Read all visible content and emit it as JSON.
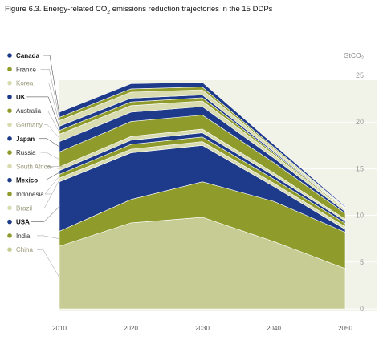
{
  "figure": {
    "title_prefix": "Figure 6.3. Energy-related CO",
    "title_sub": "2",
    "title_suffix": " emissions reduction trajectories in the 15 DDPs"
  },
  "chart_data": {
    "type": "area",
    "stacked": true,
    "x": [
      2010,
      2020,
      2030,
      2040,
      2050
    ],
    "x_tick_labels": [
      "2010",
      "2020",
      "2030",
      "2040",
      "2050"
    ],
    "ylabel_main": "GtCO",
    "ylabel_sub": "2",
    "ylim": [
      0,
      25
    ],
    "y_ticks": [
      0,
      5,
      10,
      15,
      20,
      25
    ],
    "y_axis_position": "right",
    "grid": true,
    "legend_position": "left",
    "series": [
      {
        "name": "China",
        "color": "#c6cc94",
        "label_color": "#9a9a7a",
        "bold": false,
        "values": [
          6.7,
          9.2,
          9.8,
          7.2,
          4.3
        ]
      },
      {
        "name": "India",
        "color": "#8f9b2a",
        "label_color": "#333333",
        "bold": false,
        "values": [
          1.6,
          2.5,
          3.8,
          4.3,
          3.9
        ]
      },
      {
        "name": "USA",
        "color": "#1e3a8a",
        "label_color": "#111111",
        "bold": true,
        "values": [
          5.3,
          5.0,
          3.9,
          1.6,
          0.3
        ]
      },
      {
        "name": "Brazil",
        "color": "#d8dcb0",
        "label_color": "#9a9a7a",
        "bold": false,
        "values": [
          0.4,
          0.4,
          0.4,
          0.35,
          0.3
        ]
      },
      {
        "name": "Indonesia",
        "color": "#8f9b2a",
        "label_color": "#333333",
        "bold": false,
        "values": [
          0.4,
          0.5,
          0.5,
          0.45,
          0.35
        ]
      },
      {
        "name": "Mexico",
        "color": "#1e3a8a",
        "label_color": "#111111",
        "bold": true,
        "values": [
          0.4,
          0.45,
          0.45,
          0.35,
          0.25
        ]
      },
      {
        "name": "South Africa",
        "color": "#d8dcb0",
        "label_color": "#9a9a7a",
        "bold": false,
        "values": [
          0.4,
          0.4,
          0.4,
          0.3,
          0.2
        ]
      },
      {
        "name": "Russia",
        "color": "#8f9b2a",
        "label_color": "#333333",
        "bold": false,
        "values": [
          1.6,
          1.6,
          1.5,
          1.1,
          0.6
        ]
      },
      {
        "name": "Japan",
        "color": "#1e3a8a",
        "label_color": "#111111",
        "bold": true,
        "values": [
          1.1,
          1.0,
          0.9,
          0.5,
          0.2
        ]
      },
      {
        "name": "Germany",
        "color": "#d8dcb0",
        "label_color": "#9a9a7a",
        "bold": false,
        "values": [
          0.8,
          0.7,
          0.6,
          0.35,
          0.15
        ]
      },
      {
        "name": "Australia",
        "color": "#8f9b2a",
        "label_color": "#333333",
        "bold": false,
        "values": [
          0.4,
          0.4,
          0.35,
          0.2,
          0.1
        ]
      },
      {
        "name": "UK",
        "color": "#1e3a8a",
        "label_color": "#111111",
        "bold": true,
        "values": [
          0.45,
          0.4,
          0.3,
          0.15,
          0.05
        ]
      },
      {
        "name": "Korea",
        "color": "#d8dcb0",
        "label_color": "#9a9a7a",
        "bold": false,
        "values": [
          0.6,
          0.65,
          0.55,
          0.3,
          0.1
        ]
      },
      {
        "name": "France",
        "color": "#8f9b2a",
        "label_color": "#333333",
        "bold": false,
        "values": [
          0.35,
          0.35,
          0.3,
          0.15,
          0.05
        ]
      },
      {
        "name": "Canada",
        "color": "#1e3a8a",
        "label_color": "#111111",
        "bold": true,
        "values": [
          0.55,
          0.55,
          0.5,
          0.3,
          0.1
        ]
      }
    ]
  }
}
